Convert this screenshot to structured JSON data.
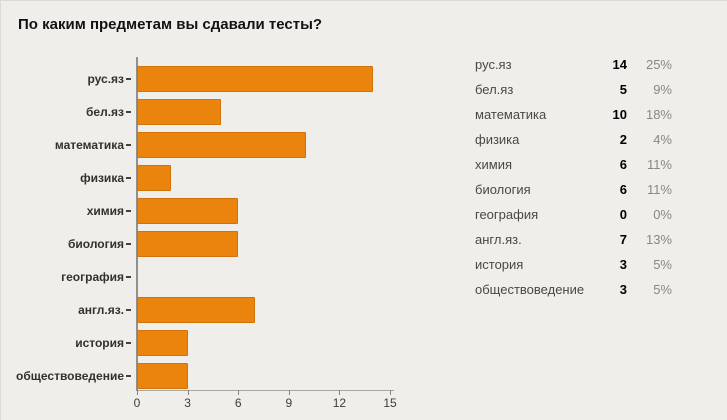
{
  "chart_data": {
    "type": "bar",
    "orientation": "horizontal",
    "title": "По каким предметам вы сдавали тесты?",
    "categories": [
      "рус.яз",
      "бел.яз",
      "математика",
      "физика",
      "химия",
      "биология",
      "география",
      "англ.яз.",
      "история",
      "обществоведение"
    ],
    "values": [
      14,
      5,
      10,
      2,
      6,
      6,
      0,
      7,
      3,
      3
    ],
    "xlabel": "",
    "ylabel": "",
    "xlim": [
      0,
      15
    ],
    "xticks": [
      0,
      3,
      6,
      9,
      12,
      15
    ],
    "grid": false,
    "legend_position": "right",
    "bar_color": "#EA840C",
    "bar_border_color": "#D0740A",
    "background_color": "#EFEEEA",
    "table": {
      "rows": [
        {
          "label": "рус.яз",
          "count": "14",
          "percent": "25%"
        },
        {
          "label": "бел.яз",
          "count": "5",
          "percent": "9%"
        },
        {
          "label": "математика",
          "count": "10",
          "percent": "18%"
        },
        {
          "label": "физика",
          "count": "2",
          "percent": "4%"
        },
        {
          "label": "химия",
          "count": "6",
          "percent": "11%"
        },
        {
          "label": "биология",
          "count": "6",
          "percent": "11%"
        },
        {
          "label": "география",
          "count": "0",
          "percent": "0%"
        },
        {
          "label": "англ.яз.",
          "count": "7",
          "percent": "13%"
        },
        {
          "label": "история",
          "count": "3",
          "percent": "5%"
        },
        {
          "label": "обществоведение",
          "count": "3",
          "percent": "5%"
        }
      ]
    }
  }
}
